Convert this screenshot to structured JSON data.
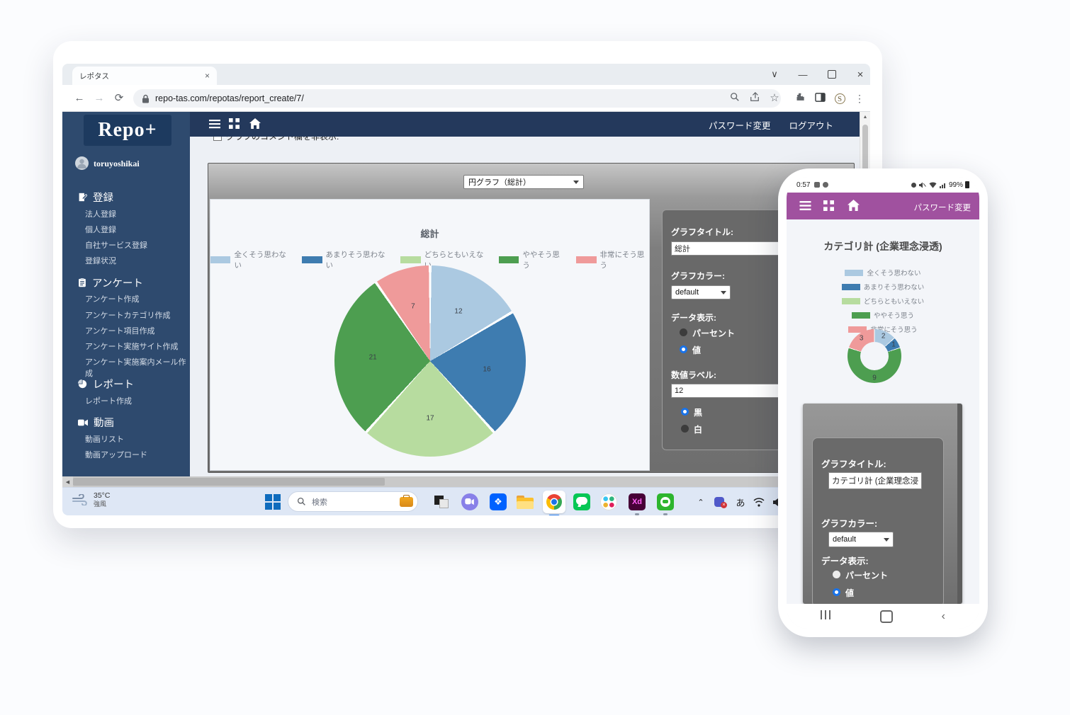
{
  "browser": {
    "tab_title": "レポタス",
    "url": "repo-tas.com/repotas/report_create/7/"
  },
  "header": {
    "logo": "Repo+",
    "password_change": "パスワード変更",
    "logout": "ログアウト"
  },
  "sidebar": {
    "user": "toruyoshikai",
    "sections": [
      {
        "header": "登録",
        "items": [
          "法人登録",
          "個人登録",
          "自社サービス登録",
          "登録状況"
        ]
      },
      {
        "header": "アンケート",
        "items": [
          "アンケート作成",
          "アンケートカテゴリ作成",
          "アンケート項目作成",
          "アンケート実施サイト作成",
          "アンケート実施案内メール作成"
        ]
      },
      {
        "header": "レポート",
        "items": [
          "レポート作成"
        ]
      },
      {
        "header": "動画",
        "items": [
          "動画リスト",
          "動画アップロード"
        ]
      }
    ]
  },
  "content": {
    "comment_toggle_label": "グラフのコメント欄を非表示:",
    "chart_type_value": "円グラフ（総計）"
  },
  "settings": {
    "graph_title_label": "グラフタイトル:",
    "graph_title_value": "総計",
    "graph_color_label": "グラフカラー:",
    "graph_color_value": "default",
    "data_display_label": "データ表示:",
    "option_percent": "パーセント",
    "option_value": "値",
    "numeric_label_label": "数値ラベル:",
    "numeric_label_value": "12",
    "option_black": "黒",
    "option_white": "白"
  },
  "taskbar": {
    "weather_temp": "35°C",
    "weather_desc": "強風",
    "search_placeholder": "検索",
    "ime_indicator": "あ",
    "xd_label": "Xd"
  },
  "phone": {
    "status_time": "0:57",
    "battery": "99%",
    "password_change": "パスワード変更",
    "form": {
      "graph_title_label": "グラフタイトル:",
      "graph_title_value": "カテゴリ計 (企業理念浸",
      "graph_color_label": "グラフカラー:",
      "graph_color_value": "default",
      "data_display_label": "データ表示:",
      "option_percent": "パーセント",
      "option_value": "値"
    }
  },
  "chart_data": [
    {
      "type": "pie",
      "title": "総計",
      "labels": [
        "全くそう思わない",
        "あまりそう思わない",
        "どちらともいえない",
        "ややそう思う",
        "非常にそう思う"
      ],
      "values": [
        12,
        16,
        17,
        21,
        7
      ],
      "colors": [
        "#abc9e1",
        "#3e7cb0",
        "#b7dc9f",
        "#4d9e50",
        "#ef9a9a"
      ],
      "legend_position": "top",
      "data_labels": "values shown on slices"
    },
    {
      "type": "donut",
      "title": "カテゴリ計 (企業理念浸透)",
      "labels": [
        "全くそう思わない",
        "あまりそう思わない",
        "どちらともいえない",
        "ややそう思う",
        "非常にそう思う"
      ],
      "values": [
        2,
        1,
        0,
        9,
        3
      ],
      "colors": [
        "#abc9e1",
        "#3e7cb0",
        "#b7dc9f",
        "#4d9e50",
        "#ef9a9a"
      ],
      "legend_position": "top",
      "data_labels": "values shown on slices"
    }
  ]
}
